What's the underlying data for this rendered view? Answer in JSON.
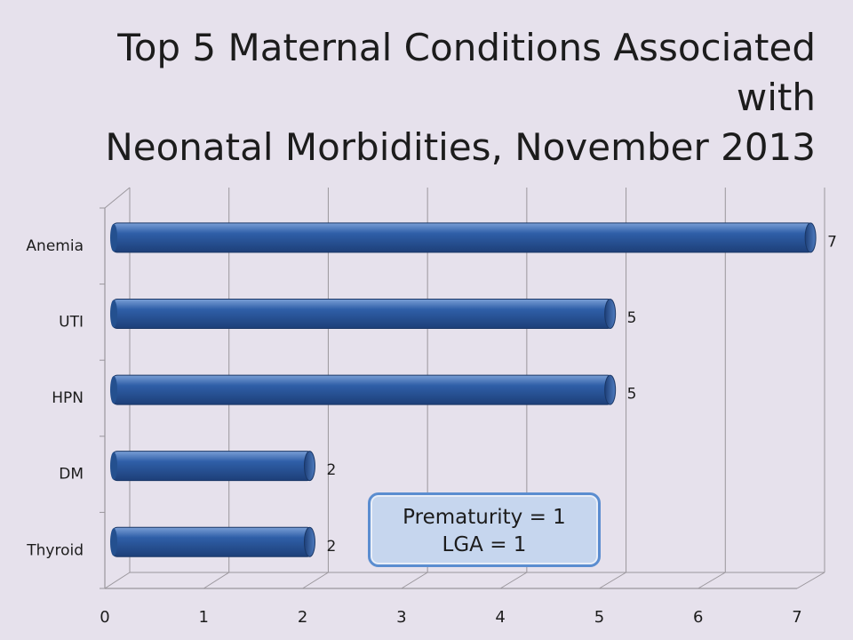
{
  "title": {
    "line1": "Top 5 Maternal Conditions Associated  with",
    "line2": "Neonatal Morbidities, November 2013"
  },
  "callout": {
    "line1": "Prematurity = 1",
    "line2": "LGA = 1"
  },
  "colors": {
    "background": "#e6e1ec",
    "bar": "#2f5fa8",
    "bar_dark": "#1d3f78",
    "callout_fill": "#c6d6ee",
    "callout_border": "#5b8dd0"
  },
  "chart_data": {
    "type": "bar",
    "orientation": "horizontal",
    "categories": [
      "Anemia",
      "UTI",
      "HPN",
      "DM",
      "Thyroid"
    ],
    "values": [
      7,
      5,
      5,
      2,
      2
    ],
    "data_labels": [
      "7",
      "5",
      "5",
      "2",
      "2"
    ],
    "xlim": [
      0,
      7
    ],
    "x_ticks": [
      "0",
      "1",
      "2",
      "3",
      "4",
      "5",
      "6",
      "7"
    ],
    "grid": true,
    "legend": "none"
  }
}
